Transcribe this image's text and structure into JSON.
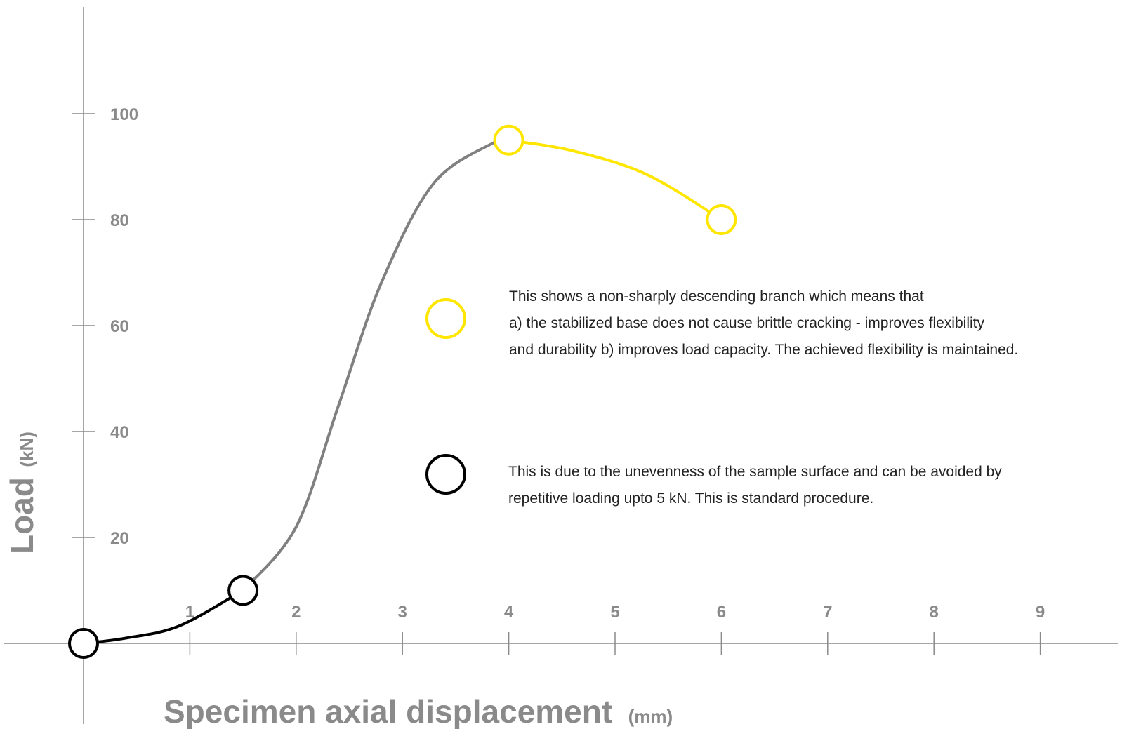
{
  "chart_data": {
    "type": "line",
    "xlabel": "Specimen axial displacement",
    "xunit": "(mm)",
    "ylabel": "Load",
    "yunit": "(kN)",
    "x_ticks": [
      "1",
      "2",
      "3",
      "4",
      "5",
      "6",
      "7",
      "8",
      "9"
    ],
    "y_ticks": [
      "20",
      "40",
      "60",
      "80",
      "100"
    ],
    "xlim": [
      0,
      9.5
    ],
    "ylim": [
      0,
      115
    ],
    "grid": false,
    "series": [
      {
        "color": "#000000",
        "points": [
          [
            0,
            0
          ],
          [
            0.4,
            1.0
          ],
          [
            0.9,
            3.3
          ],
          [
            1.5,
            10
          ]
        ]
      },
      {
        "color": "#808080",
        "points": [
          [
            1.5,
            10
          ],
          [
            2.0,
            22
          ],
          [
            2.4,
            45
          ],
          [
            2.8,
            68
          ],
          [
            3.3,
            87
          ],
          [
            3.9,
            95
          ]
        ]
      },
      {
        "color": "#ffe600",
        "points": [
          [
            4.0,
            95
          ],
          [
            4.6,
            93
          ],
          [
            5.3,
            88.5
          ],
          [
            6.0,
            80
          ]
        ]
      }
    ],
    "markers": [
      {
        "x": 0,
        "y": 0,
        "color": "#000000"
      },
      {
        "x": 1.5,
        "y": 10,
        "color": "#000000"
      },
      {
        "x": 4.0,
        "y": 95,
        "color": "#ffe600"
      },
      {
        "x": 6.0,
        "y": 80,
        "color": "#ffe600"
      }
    ],
    "annotations": [
      {
        "marker_color": "#ffe600",
        "text": "This shows a non-sharply descending branch which means that\na) the stabilized base does not cause brittle cracking - improves flexibility\nand durability b) improves load capacity. The achieved flexibility is maintained."
      },
      {
        "marker_color": "#000000",
        "text": "This is due to the unevenness of the sample surface and can be avoided by\nrepetitive loading upto 5 kN. This is standard procedure."
      }
    ]
  }
}
